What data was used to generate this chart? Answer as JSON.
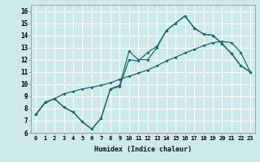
{
  "xlabel": "Humidex (Indice chaleur)",
  "bg_color": "#cee9e9",
  "grid_color": "#ffffff",
  "line_color": "#1a6b6b",
  "xlim": [
    -0.5,
    23.5
  ],
  "ylim": [
    6,
    16.5
  ],
  "xticks": [
    0,
    1,
    2,
    3,
    4,
    5,
    6,
    7,
    8,
    9,
    10,
    11,
    12,
    13,
    14,
    15,
    16,
    17,
    18,
    19,
    20,
    21,
    22,
    23
  ],
  "yticks": [
    6,
    7,
    8,
    9,
    10,
    11,
    12,
    13,
    14,
    15,
    16
  ],
  "line1_x": [
    0,
    1,
    2,
    3,
    4,
    5,
    6,
    7,
    8,
    9,
    10,
    11,
    12,
    13,
    14,
    15,
    16,
    17,
    18,
    19,
    20,
    21,
    22,
    23
  ],
  "line1_y": [
    7.5,
    8.5,
    8.8,
    9.2,
    9.4,
    9.6,
    9.75,
    9.9,
    10.1,
    10.4,
    10.65,
    10.9,
    11.15,
    11.5,
    11.9,
    12.2,
    12.55,
    12.85,
    13.15,
    13.4,
    13.5,
    13.4,
    12.6,
    11.0
  ],
  "line2_x": [
    0,
    1,
    2,
    3,
    4,
    5,
    6,
    7,
    8,
    9,
    10,
    11,
    12,
    13,
    14,
    15,
    16,
    17,
    18,
    19,
    20,
    21,
    22,
    23
  ],
  "line2_y": [
    7.5,
    8.5,
    8.8,
    8.1,
    7.7,
    6.9,
    6.3,
    7.2,
    9.6,
    9.8,
    12.0,
    11.9,
    12.6,
    13.1,
    14.4,
    15.0,
    15.6,
    14.6,
    14.1,
    14.0,
    13.3,
    12.5,
    11.5,
    11.0
  ],
  "line3_x": [
    0,
    1,
    2,
    3,
    4,
    5,
    6,
    7,
    8,
    9,
    10,
    11,
    12,
    13,
    14,
    15,
    16,
    17,
    18,
    19,
    20,
    21,
    22,
    23
  ],
  "line3_y": [
    7.5,
    8.5,
    8.8,
    8.1,
    7.7,
    6.9,
    6.3,
    7.2,
    9.6,
    9.9,
    12.7,
    12.0,
    12.0,
    13.0,
    14.4,
    15.0,
    15.6,
    14.6,
    14.1,
    14.0,
    13.3,
    12.5,
    11.5,
    11.0
  ]
}
